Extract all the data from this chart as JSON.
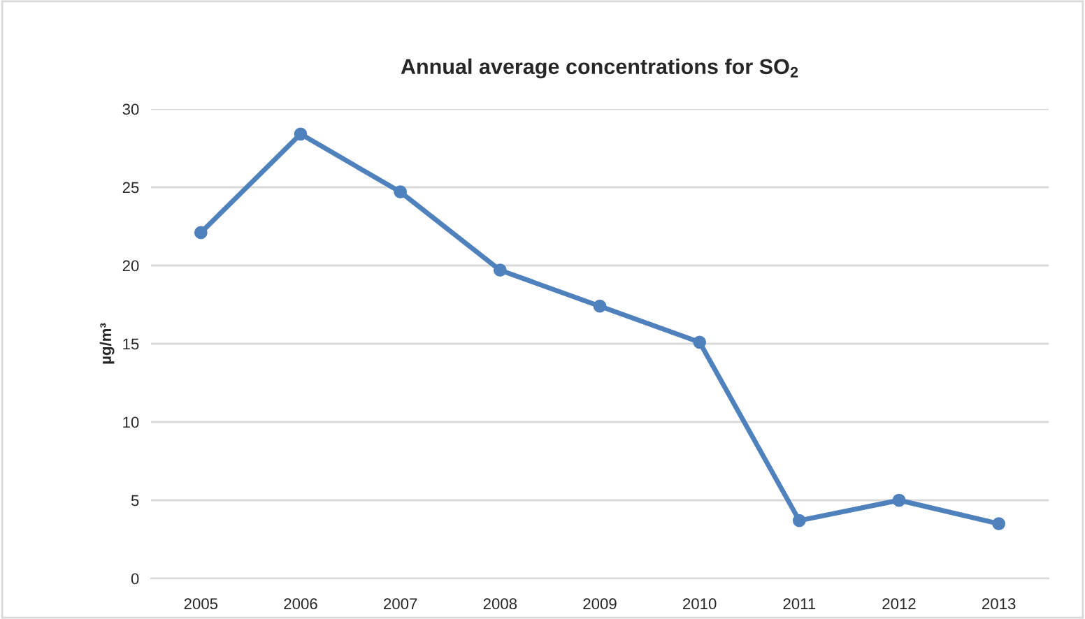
{
  "chart_data": {
    "type": "line",
    "title": "Annual average concentrations for SO$_{2}$",
    "ylabel": "µg/m³",
    "categories": [
      "2005",
      "2006",
      "2007",
      "2008",
      "2009",
      "2010",
      "2011",
      "2012",
      "2013"
    ],
    "series": [
      {
        "color": "#4f81bd",
        "values": [
          22.1,
          28.4,
          24.7,
          19.7,
          17.4,
          15.1,
          3.7,
          5.0,
          3.5
        ]
      }
    ],
    "ylim": [
      0,
      30
    ],
    "yticks": [
      0,
      5,
      10,
      15,
      20,
      25,
      30
    ],
    "grid": "y",
    "marker": "circle",
    "line_style": "solid",
    "legend": false
  }
}
